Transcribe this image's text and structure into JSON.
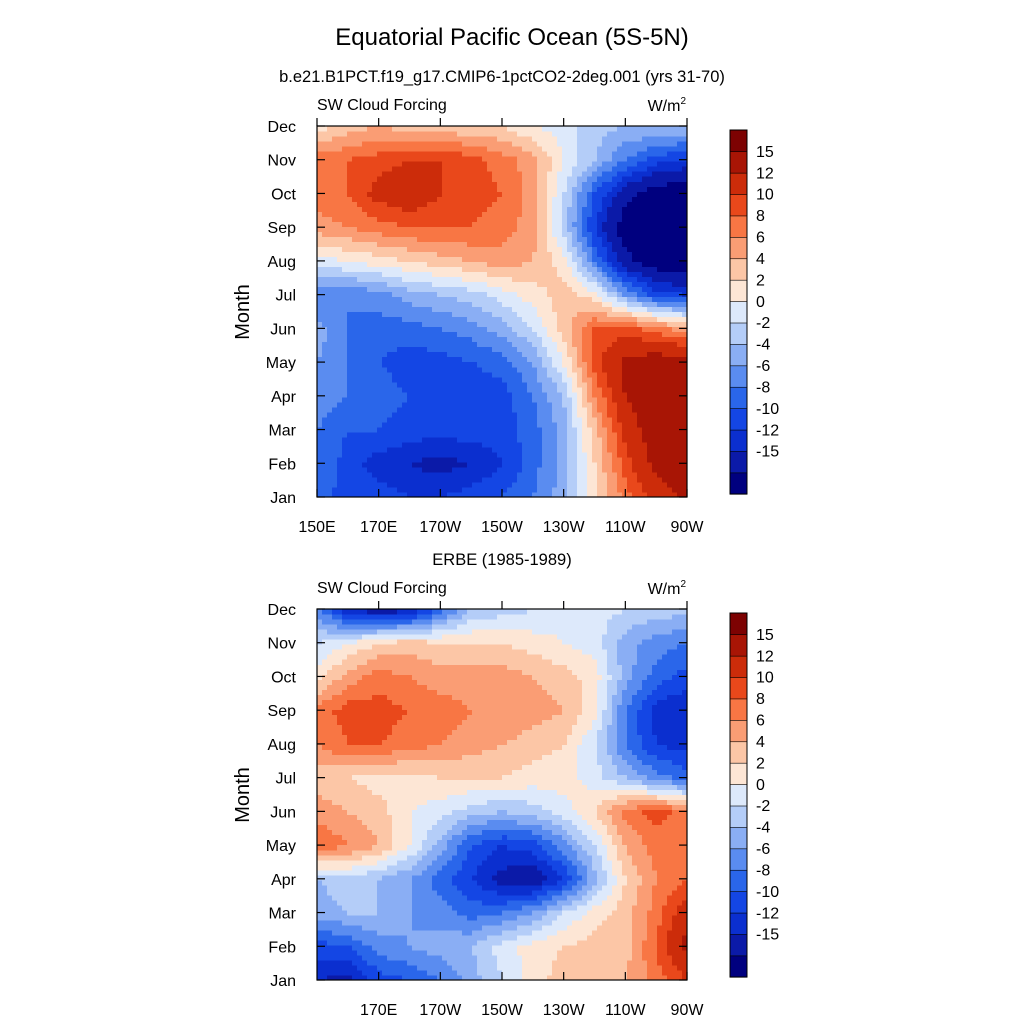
{
  "page": {
    "title": "Equatorial Pacific Ocean (5S-5N)"
  },
  "colorbar": {
    "colors": [
      "#00007f",
      "#0b1aa8",
      "#0b2fcf",
      "#1446e4",
      "#2a66ea",
      "#5a8cf0",
      "#8aaef4",
      "#b4cdf8",
      "#dde9fb",
      "#fde6d5",
      "#fcc6a6",
      "#fa9d74",
      "#f87644",
      "#e9481b",
      "#cc2c0a",
      "#a81505",
      "#7d0202"
    ],
    "labels": [
      "15",
      "12",
      "10",
      "8",
      "6",
      "4",
      "2",
      "0",
      "-2",
      "-4",
      "-6",
      "-8",
      "-10",
      "-12",
      "-15"
    ]
  },
  "chart_data": [
    {
      "type": "heatmap",
      "title": "b.e21.B1PCT.f19_g17.CMIP6-1pctCO2-2deg.001 (yrs 31-70)",
      "left_string": "SW Cloud Forcing",
      "units": "W/m",
      "units_sup": "2",
      "ylabel": "Month",
      "x_ticks": [
        "150E",
        "170E",
        "170W",
        "150W",
        "130W",
        "110W",
        "90W"
      ],
      "y_ticks": [
        "Dec",
        "Nov",
        "Oct",
        "Sep",
        "Aug",
        "Jul",
        "Jun",
        "May",
        "Apr",
        "Mar",
        "Feb",
        "Jan"
      ],
      "x_range": [
        "150E",
        "90W"
      ],
      "y_range": [
        "Jan",
        "Dec"
      ],
      "levels": [
        -15,
        -12,
        -10,
        -8,
        -6,
        -4,
        -2,
        0,
        2,
        4,
        6,
        8,
        10,
        12,
        15
      ],
      "x": [
        "150E",
        "160E",
        "170E",
        "180",
        "170W",
        "160W",
        "150W",
        "140W",
        "130W",
        "120W",
        "110W",
        "100W",
        "90W"
      ],
      "y": [
        "Jan",
        "Feb",
        "Mar",
        "Apr",
        "May",
        "Jun",
        "Jul",
        "Aug",
        "Sep",
        "Oct",
        "Nov",
        "Dec"
      ],
      "z": [
        [
          -7,
          -9,
          -9,
          -10,
          -10,
          -9,
          -8,
          -6,
          -3,
          3,
          9,
          13,
          16
        ],
        [
          -6,
          -9,
          -11,
          -12,
          -13,
          -12,
          -10,
          -7,
          -3,
          4,
          11,
          16,
          18
        ],
        [
          -6,
          -8,
          -8,
          -9,
          -9,
          -9,
          -9,
          -7,
          -3,
          5,
          13,
          17,
          18
        ],
        [
          -5,
          -6,
          -7,
          -8,
          -9,
          -10,
          -9,
          -6,
          -2,
          8,
          15,
          17,
          17
        ],
        [
          -4,
          -6,
          -8,
          -9,
          -9,
          -8,
          -7,
          -4,
          2,
          11,
          16,
          17,
          17
        ],
        [
          -3,
          -6,
          -7,
          -7,
          -6,
          -5,
          -3,
          0,
          5,
          10,
          11,
          9,
          7
        ],
        [
          -6,
          -6,
          -5,
          -3,
          -2,
          -1,
          1,
          3,
          5,
          3,
          -4,
          -9,
          -10
        ],
        [
          1,
          2,
          3,
          4,
          5,
          6,
          7,
          6,
          3,
          -6,
          -14,
          -17,
          -18
        ],
        [
          7,
          8,
          9,
          10,
          10,
          10,
          9,
          7,
          -1,
          -10,
          -17,
          -18,
          -19
        ],
        [
          9,
          10,
          13,
          14,
          12,
          11,
          10,
          7,
          0,
          -8,
          -14,
          -17,
          -18
        ],
        [
          9,
          10,
          11,
          12,
          12,
          11,
          9,
          7,
          2,
          -2,
          -6,
          -9,
          -10
        ],
        [
          3,
          5,
          6,
          5,
          5,
          4,
          4,
          2,
          1,
          -1,
          -2,
          -2,
          -2
        ]
      ]
    },
    {
      "type": "heatmap",
      "title": "ERBE (1985-1989)",
      "left_string": "SW Cloud Forcing",
      "units": "W/m",
      "units_sup": "2",
      "ylabel": "Month",
      "x_ticks": [
        "170E",
        "170W",
        "150W",
        "130W",
        "110W",
        "90W"
      ],
      "y_ticks": [
        "Dec",
        "Nov",
        "Oct",
        "Sep",
        "Aug",
        "Jul",
        "Jun",
        "May",
        "Apr",
        "Mar",
        "Feb",
        "Jan"
      ],
      "x_range": [
        "150E",
        "90W"
      ],
      "y_range": [
        "Jan",
        "Dec"
      ],
      "levels": [
        -15,
        -12,
        -10,
        -8,
        -6,
        -4,
        -2,
        0,
        2,
        4,
        6,
        8,
        10,
        12,
        15
      ],
      "x": [
        "150E",
        "160E",
        "170E",
        "180",
        "170W",
        "160W",
        "150W",
        "140W",
        "130W",
        "120W",
        "110W",
        "100W",
        "90W"
      ],
      "y": [
        "Jan",
        "Feb",
        "Mar",
        "Apr",
        "May",
        "Jun",
        "Jul",
        "Aug",
        "Sep",
        "Oct",
        "Nov",
        "Dec"
      ],
      "z": [
        [
          -12,
          -13,
          -9,
          -8,
          -6,
          -3,
          0,
          3,
          5,
          6,
          6,
          9,
          12
        ],
        [
          -9,
          -8,
          -5,
          -4,
          -3,
          -2,
          1,
          3,
          4,
          5,
          5,
          10,
          16
        ],
        [
          -3,
          -2,
          -2,
          -4,
          -5,
          -7,
          -6,
          -4,
          0,
          3,
          5,
          9,
          14
        ],
        [
          -2,
          -1,
          -2,
          -4,
          -7,
          -10,
          -13,
          -14,
          -10,
          -3,
          4,
          8,
          10
        ],
        [
          10,
          8,
          6,
          2,
          -3,
          -8,
          -10,
          -9,
          -5,
          0,
          6,
          9,
          9
        ],
        [
          7,
          6,
          5,
          2,
          1,
          -1,
          -2,
          -1,
          1,
          4,
          9,
          11,
          9
        ],
        [
          5,
          4,
          3,
          3,
          4,
          4,
          4,
          3,
          3,
          1,
          -2,
          -5,
          -7
        ],
        [
          8,
          10,
          10,
          9,
          8,
          7,
          6,
          5,
          4,
          0,
          -6,
          -10,
          -11
        ],
        [
          9,
          11,
          11,
          10,
          9,
          8,
          8,
          7,
          6,
          3,
          -6,
          -11,
          -12
        ],
        [
          3,
          7,
          9,
          8,
          7,
          7,
          7,
          6,
          5,
          3,
          -3,
          -7,
          -9
        ],
        [
          0,
          2,
          4,
          5,
          4,
          4,
          4,
          3,
          2,
          1,
          -3,
          -5,
          -6
        ],
        [
          -5,
          -12,
          -14,
          -13,
          -7,
          -2,
          -1,
          0,
          1,
          1,
          0,
          -1,
          -1
        ]
      ]
    }
  ]
}
